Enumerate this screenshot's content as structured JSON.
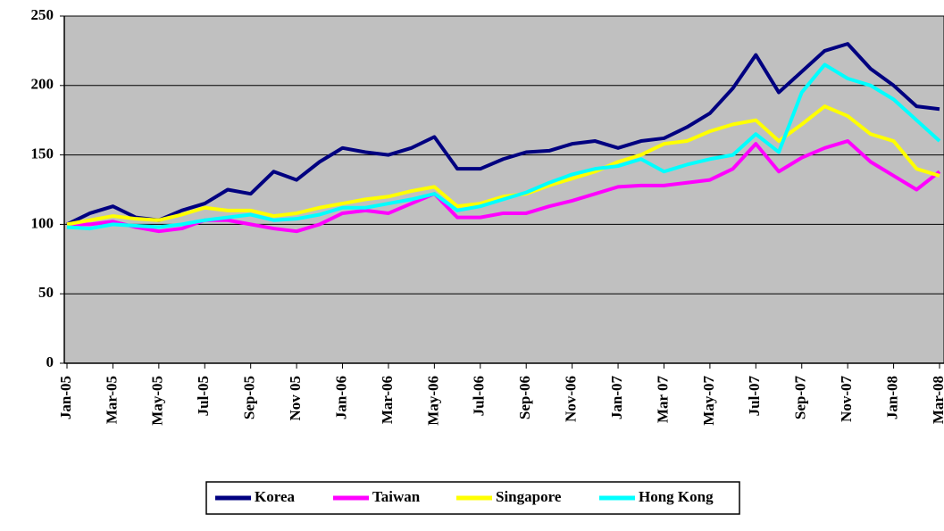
{
  "chart_data": {
    "type": "line",
    "categories": [
      "Jan-05",
      null,
      "Mar-05",
      null,
      "May-05",
      null,
      "Jul-05",
      null,
      "Sep-05",
      null,
      "Nov 05",
      null,
      "Jan-06",
      null,
      "Mar-06",
      null,
      "May-06",
      null,
      "Jul-06",
      null,
      "Sep-06",
      null,
      "Nov-06",
      null,
      "Jan-07",
      null,
      "Mar 07",
      null,
      "May-07",
      null,
      "Jul-07",
      null,
      "Sep-07",
      null,
      "Nov-07",
      null,
      "Jan-08",
      null,
      "Mar-08"
    ],
    "series": [
      {
        "name": "Korea",
        "color": "#000080",
        "values": [
          100,
          108,
          113,
          105,
          103,
          110,
          115,
          125,
          122,
          138,
          132,
          145,
          155,
          152,
          150,
          155,
          163,
          140,
          140,
          147,
          152,
          153,
          158,
          160,
          155,
          160,
          162,
          170,
          180,
          198,
          222,
          195,
          210,
          225,
          230,
          212,
          200,
          185,
          183
        ]
      },
      {
        "name": "Taiwan",
        "color": "#ff00ff",
        "values": [
          100,
          100,
          102,
          98,
          95,
          97,
          103,
          103,
          100,
          97,
          95,
          100,
          108,
          110,
          108,
          115,
          122,
          105,
          105,
          108,
          108,
          113,
          117,
          122,
          127,
          128,
          128,
          130,
          132,
          140,
          158,
          138,
          148,
          155,
          160,
          145,
          135,
          125,
          138
        ]
      },
      {
        "name": "Singapore",
        "color": "#ffff00",
        "values": [
          100,
          103,
          106,
          104,
          103,
          107,
          112,
          110,
          110,
          106,
          108,
          112,
          115,
          118,
          120,
          124,
          127,
          113,
          115,
          120,
          122,
          128,
          133,
          138,
          145,
          150,
          158,
          160,
          167,
          172,
          175,
          160,
          172,
          185,
          178,
          165,
          160,
          140,
          135
        ]
      },
      {
        "name": "Hong Kong",
        "color": "#00ffff",
        "values": [
          98,
          97,
          100,
          99,
          98,
          100,
          103,
          105,
          107,
          103,
          104,
          107,
          112,
          112,
          115,
          118,
          122,
          110,
          113,
          118,
          123,
          130,
          136,
          140,
          142,
          147,
          138,
          143,
          147,
          150,
          165,
          152,
          195,
          215,
          205,
          200,
          190,
          175,
          160
        ]
      }
    ],
    "ylim": [
      0,
      250
    ],
    "yticks": [
      0,
      50,
      100,
      150,
      200,
      250
    ],
    "grid": true,
    "plot_background": "#c0c0c0",
    "legend": "bottom"
  }
}
